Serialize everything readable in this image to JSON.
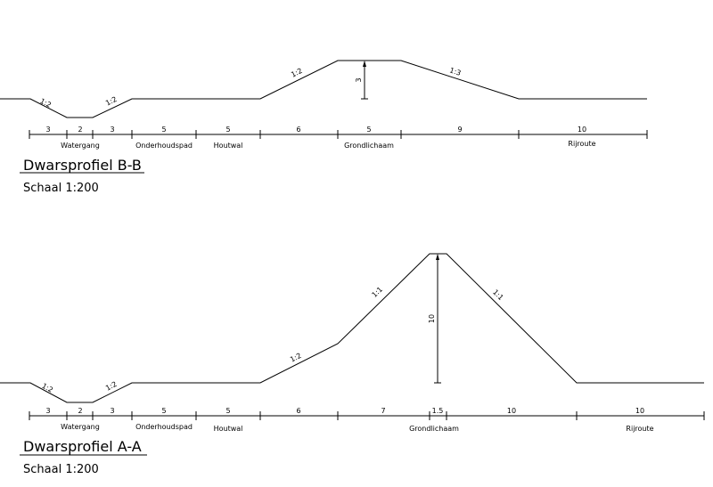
{
  "profiles": [
    {
      "title": "Dwarsprofiel B-B",
      "scale": "Schaal 1:200",
      "slopes": [
        "1:2",
        "1:2",
        "1:2",
        "1:3"
      ],
      "height_label": "3",
      "dimensions": [
        "3",
        "2",
        "3",
        "5",
        "5",
        "6",
        "5",
        "9",
        "10"
      ],
      "zones": [
        "Watergang",
        "Onderhoudspad",
        "Houtwal",
        "Grondlichaam",
        "Rijroute"
      ]
    },
    {
      "title": "Dwarsprofiel A-A",
      "scale": "Schaal 1:200",
      "slopes": [
        "1:2",
        "1:2",
        "1:2",
        "1:1",
        "1:1"
      ],
      "height_label": "10",
      "dimensions": [
        "3",
        "2",
        "3",
        "5",
        "5",
        "6",
        "7",
        "1.5",
        "10",
        "10"
      ],
      "zones": [
        "Watergang",
        "Onderhoudspad",
        "Houtwal",
        "Grondlichaam",
        "Rijroute"
      ]
    }
  ]
}
